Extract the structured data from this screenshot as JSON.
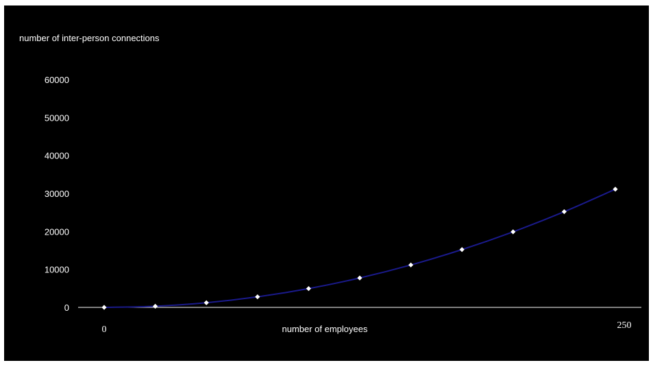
{
  "chart_data": {
    "type": "line",
    "title": "",
    "ylabel": "number of inter-person connections",
    "xlabel": "number of employees",
    "x_tick_labels": [
      "0",
      "250"
    ],
    "y_tick_labels": [
      "0",
      "10000",
      "20000",
      "30000",
      "40000",
      "50000",
      "60000"
    ],
    "xlim": [
      0,
      250
    ],
    "ylim": [
      0,
      60000
    ],
    "x_ticks": [
      0,
      250
    ],
    "y_ticks": [
      0,
      10000,
      20000,
      30000,
      40000,
      50000,
      60000
    ],
    "series": [
      {
        "x": [
          0,
          25,
          50,
          75,
          100,
          125,
          150,
          175,
          200,
          225,
          250
        ],
        "y": [
          0,
          300,
          1225,
          2775,
          4950,
          7750,
          11175,
          15225,
          19900,
          25200,
          31125
        ]
      }
    ],
    "background": "#000000",
    "line_color": "#1a1a8c",
    "marker_color": "#ffffff",
    "axis_color": "#ffffff",
    "grid": false,
    "legend": "none"
  }
}
